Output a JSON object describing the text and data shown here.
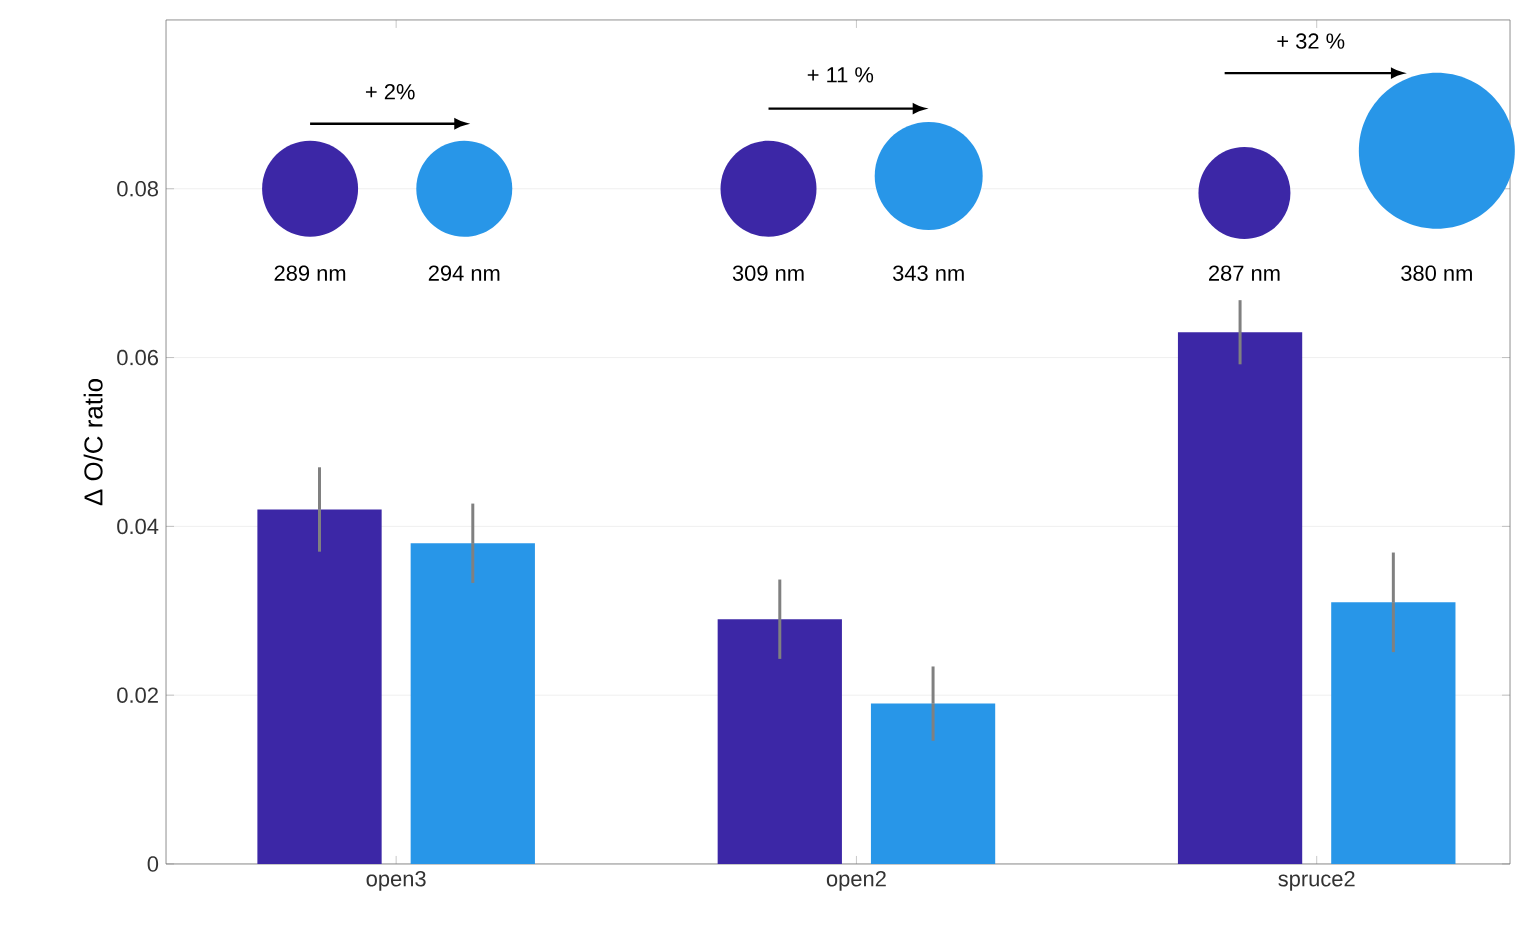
{
  "chart_data": {
    "type": "bar",
    "ylabel": "Δ O/C ratio",
    "categories": [
      "open3",
      "open2",
      "spruce2"
    ],
    "series": [
      {
        "color": "#3c27a6",
        "values": [
          0.042,
          0.029,
          0.063
        ],
        "errors": [
          0.005,
          0.0047,
          0.0038
        ]
      },
      {
        "color": "#2896e8",
        "values": [
          0.038,
          0.019,
          0.031
        ],
        "errors": [
          0.0047,
          0.0044,
          0.0059
        ]
      }
    ],
    "ylim": [
      0,
      0.1
    ],
    "yticks": [
      0,
      0.02,
      0.04,
      0.06,
      0.08
    ],
    "grid": "y",
    "annotations": [
      "+ 2%",
      "289 nm",
      "294 nm",
      "+ 11 %",
      "309 nm",
      "343 nm",
      "+ 32 %",
      "287 nm",
      "380 nm"
    ]
  }
}
